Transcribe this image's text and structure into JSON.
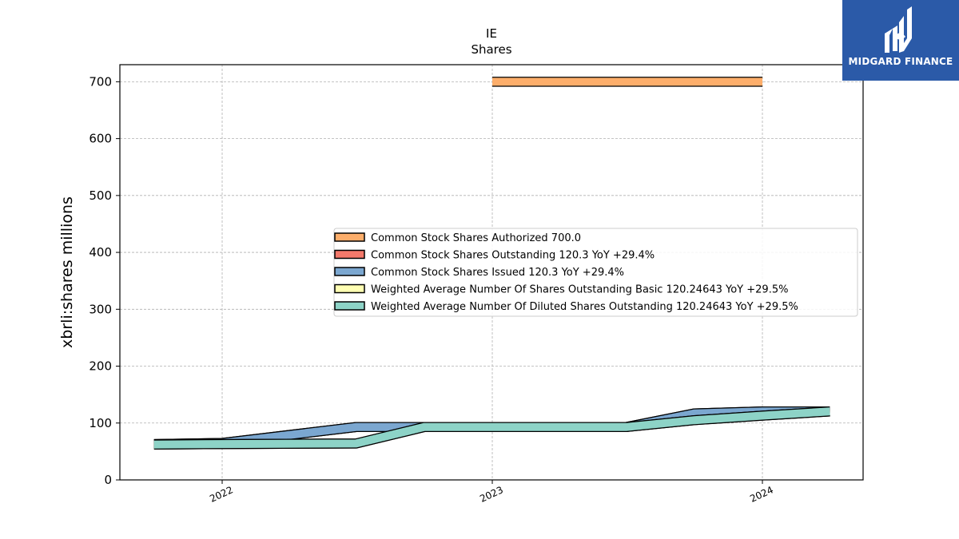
{
  "chart_data": {
    "type": "area",
    "title": "IE",
    "subtitle": "Shares",
    "ylabel": "xbrli:shares millions",
    "xlabel": "",
    "ylim": [
      0,
      730
    ],
    "yticks": [
      0,
      100,
      200,
      300,
      400,
      500,
      600,
      700
    ],
    "xticks": [
      "2022",
      "2023",
      "2024"
    ],
    "grid": true,
    "legend_placement": "center-right",
    "series": [
      {
        "name": "Common Stock Shares Authorized",
        "legend_label": "Common Stock Shares Authorized  700.0",
        "color": "#fdae6b",
        "points": [
          [
            "2023-01-01",
            700
          ],
          [
            "2024-01-01",
            700
          ]
        ]
      },
      {
        "name": "Common Stock Shares Outstanding",
        "legend_label": "Common Stock Shares Outstanding  120.3 YoY +29.4%",
        "color": "#f4796b",
        "points": [
          [
            "2021-10-01",
            63
          ],
          [
            "2022-01-01",
            65
          ],
          [
            "2022-07-01",
            93
          ],
          [
            "2022-10-01",
            93
          ],
          [
            "2023-01-01",
            93
          ],
          [
            "2023-07-01",
            93
          ],
          [
            "2023-10-01",
            117
          ],
          [
            "2024-01-01",
            120.3
          ],
          [
            "2024-04-01",
            120.3
          ]
        ]
      },
      {
        "name": "Common Stock Shares Issued",
        "legend_label": "Common Stock Shares Issued  120.3 YoY +29.4%",
        "color": "#7ba7d0",
        "points": [
          [
            "2021-10-01",
            63
          ],
          [
            "2022-01-01",
            65
          ],
          [
            "2022-07-01",
            93
          ],
          [
            "2022-10-01",
            93
          ],
          [
            "2023-01-01",
            93
          ],
          [
            "2023-07-01",
            93
          ],
          [
            "2023-10-01",
            117
          ],
          [
            "2024-01-01",
            120.3
          ],
          [
            "2024-04-01",
            120.3
          ]
        ]
      },
      {
        "name": "Weighted Average Number Of Shares Outstanding Basic",
        "legend_label": "Weighted Average Number Of Shares Outstanding Basic  120.24643 YoY +29.5%",
        "color": "#ffffb3",
        "points": [
          [
            "2021-10-01",
            62
          ],
          [
            "2022-01-01",
            63
          ],
          [
            "2022-07-01",
            64
          ],
          [
            "2022-10-01",
            93
          ],
          [
            "2023-01-01",
            93
          ],
          [
            "2023-07-01",
            93
          ],
          [
            "2023-10-01",
            105
          ],
          [
            "2024-01-01",
            113
          ],
          [
            "2024-04-01",
            120.24643
          ]
        ]
      },
      {
        "name": "Weighted Average Number Of Diluted Shares Outstanding",
        "legend_label": "Weighted Average Number Of Diluted Shares Outstanding  120.24643 YoY +29.5%",
        "color": "#8dd3c7",
        "points": [
          [
            "2021-10-01",
            62
          ],
          [
            "2022-01-01",
            63
          ],
          [
            "2022-07-01",
            64
          ],
          [
            "2022-10-01",
            93
          ],
          [
            "2023-01-01",
            93
          ],
          [
            "2023-07-01",
            93
          ],
          [
            "2023-10-01",
            105
          ],
          [
            "2024-01-01",
            113
          ],
          [
            "2024-04-01",
            120.24643
          ]
        ]
      }
    ]
  },
  "logo": {
    "text": "MIDGARD FINANCE",
    "icon": "midgard-monogram-icon",
    "background": "#2b5aa8"
  }
}
